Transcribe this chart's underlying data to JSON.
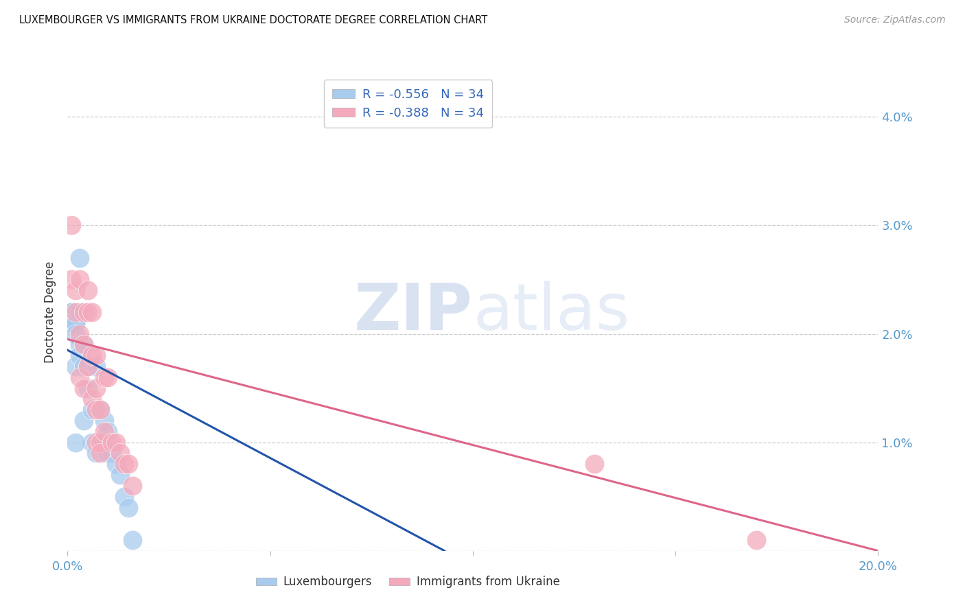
{
  "title": "LUXEMBOURGER VS IMMIGRANTS FROM UKRAINE DOCTORATE DEGREE CORRELATION CHART",
  "source": "Source: ZipAtlas.com",
  "ylabel": "Doctorate Degree",
  "right_yticks": [
    "",
    "1.0%",
    "2.0%",
    "3.0%",
    "4.0%"
  ],
  "right_ytick_vals": [
    0.0,
    0.01,
    0.02,
    0.03,
    0.04
  ],
  "xlim": [
    0.0,
    0.2
  ],
  "ylim": [
    0.0,
    0.044
  ],
  "lux_color": "#A8CBEE",
  "ukr_color": "#F4AABC",
  "lux_line_color": "#2255AA",
  "ukr_line_color": "#DD6688",
  "legend_R_lux": "-0.556",
  "legend_N_lux": "34",
  "legend_R_ukr": "-0.388",
  "legend_N_ukr": "34",
  "watermark_zip": "ZIP",
  "watermark_atlas": "atlas",
  "lux_scatter_x": [
    0.001,
    0.001,
    0.001,
    0.002,
    0.002,
    0.002,
    0.002,
    0.002,
    0.003,
    0.003,
    0.003,
    0.003,
    0.004,
    0.004,
    0.004,
    0.005,
    0.005,
    0.006,
    0.006,
    0.007,
    0.007,
    0.007,
    0.008,
    0.008,
    0.009,
    0.01,
    0.01,
    0.011,
    0.012,
    0.013,
    0.014,
    0.015,
    0.016,
    0.002
  ],
  "lux_scatter_y": [
    0.022,
    0.022,
    0.021,
    0.021,
    0.021,
    0.021,
    0.02,
    0.017,
    0.027,
    0.022,
    0.019,
    0.018,
    0.019,
    0.017,
    0.012,
    0.017,
    0.015,
    0.013,
    0.01,
    0.017,
    0.013,
    0.009,
    0.013,
    0.01,
    0.012,
    0.011,
    0.009,
    0.009,
    0.008,
    0.007,
    0.005,
    0.004,
    0.001,
    0.01
  ],
  "ukr_scatter_x": [
    0.001,
    0.001,
    0.002,
    0.002,
    0.003,
    0.003,
    0.003,
    0.004,
    0.004,
    0.004,
    0.005,
    0.005,
    0.005,
    0.006,
    0.006,
    0.006,
    0.007,
    0.007,
    0.007,
    0.007,
    0.008,
    0.008,
    0.008,
    0.009,
    0.009,
    0.01,
    0.011,
    0.012,
    0.013,
    0.014,
    0.015,
    0.016,
    0.13,
    0.17
  ],
  "ukr_scatter_y": [
    0.03,
    0.025,
    0.024,
    0.022,
    0.025,
    0.02,
    0.016,
    0.022,
    0.019,
    0.015,
    0.024,
    0.022,
    0.017,
    0.022,
    0.018,
    0.014,
    0.018,
    0.015,
    0.013,
    0.01,
    0.013,
    0.01,
    0.009,
    0.016,
    0.011,
    0.016,
    0.01,
    0.01,
    0.009,
    0.008,
    0.008,
    0.006,
    0.008,
    0.001
  ],
  "lux_trend_x": [
    0.0,
    0.093
  ],
  "lux_trend_y": [
    0.0185,
    0.0
  ],
  "ukr_trend_x": [
    0.0,
    0.2
  ],
  "ukr_trend_y": [
    0.0195,
    0.0
  ],
  "xtick_positions": [
    0.0,
    0.05,
    0.1,
    0.15,
    0.2
  ],
  "xtick_labels": [
    "0.0%",
    "",
    "",
    "",
    "20.0%"
  ]
}
